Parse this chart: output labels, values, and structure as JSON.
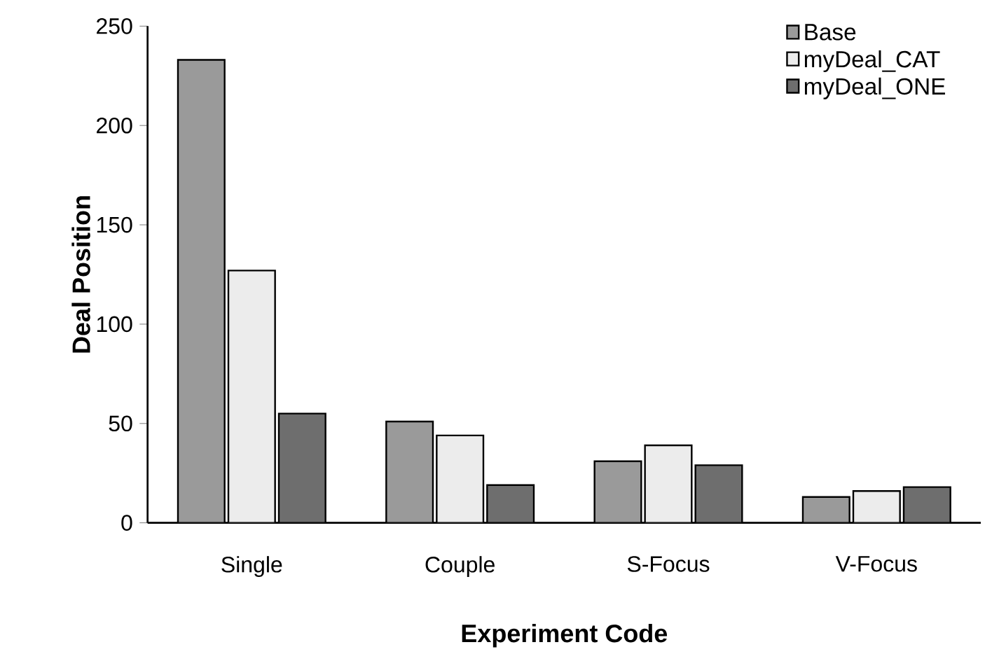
{
  "chart_data": {
    "type": "bar",
    "xlabel": "Experiment Code",
    "ylabel": "Deal Position",
    "categories": [
      "Single",
      "Couple",
      "S-Focus",
      "V-Focus"
    ],
    "series": [
      {
        "name": "Base",
        "color": "#9a9a9a",
        "values": [
          233,
          51,
          31,
          13
        ]
      },
      {
        "name": "myDeal_CAT",
        "color": "#ececec",
        "values": [
          127,
          44,
          39,
          16
        ]
      },
      {
        "name": "myDeal_ONE",
        "color": "#6e6e6e",
        "values": [
          55,
          19,
          29,
          18
        ]
      }
    ],
    "ylim": [
      0,
      250
    ],
    "yticks": [
      0,
      50,
      100,
      150,
      200,
      250
    ],
    "grid": false,
    "legend": "top right"
  }
}
